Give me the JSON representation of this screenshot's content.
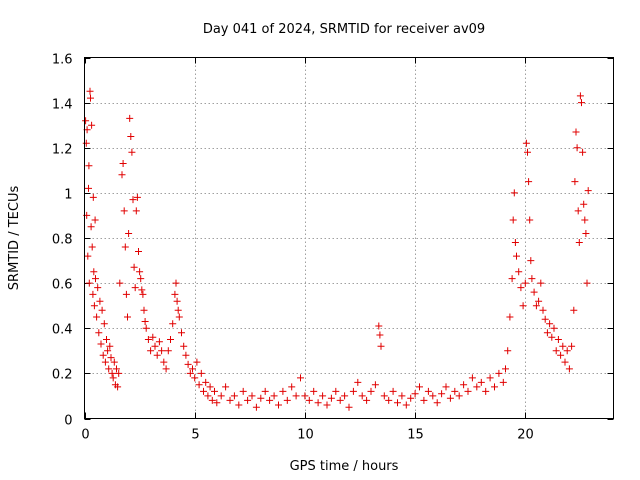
{
  "chart_data": {
    "type": "scatter",
    "title": "Day 041 of 2024, SRMTID for receiver av09",
    "xlabel": "GPS time / hours",
    "ylabel": "SRMTID / TECUs",
    "xlim": [
      0,
      24
    ],
    "ylim": [
      0,
      1.6
    ],
    "xticks": [
      0,
      5,
      10,
      15,
      20
    ],
    "xtick_labels": [
      "0",
      "5",
      "10",
      "15",
      "20"
    ],
    "yticks": [
      0,
      0.2,
      0.4,
      0.6,
      0.8,
      1.0,
      1.2,
      1.4,
      1.6
    ],
    "ytick_labels": [
      "0",
      "0.2",
      "0.4",
      "0.6",
      "0.8",
      "1",
      "1.2",
      "1.4",
      "1.6"
    ],
    "grid": true,
    "marker": "+",
    "series": [
      {
        "name": "SRMTID",
        "color": "#e00000",
        "points": [
          [
            0.05,
            1.32
          ],
          [
            0.08,
            1.22
          ],
          [
            0.1,
            0.9
          ],
          [
            0.12,
            1.28
          ],
          [
            0.15,
            0.72
          ],
          [
            0.18,
            1.02
          ],
          [
            0.2,
            1.12
          ],
          [
            0.22,
            0.6
          ],
          [
            0.25,
            1.45
          ],
          [
            0.27,
            1.42
          ],
          [
            0.3,
            0.85
          ],
          [
            0.32,
            1.3
          ],
          [
            0.35,
            0.76
          ],
          [
            0.38,
            0.55
          ],
          [
            0.4,
            0.98
          ],
          [
            0.42,
            0.65
          ],
          [
            0.45,
            0.5
          ],
          [
            0.48,
            0.88
          ],
          [
            0.5,
            0.62
          ],
          [
            0.55,
            0.45
          ],
          [
            0.6,
            0.58
          ],
          [
            0.65,
            0.38
          ],
          [
            0.7,
            0.52
          ],
          [
            0.75,
            0.33
          ],
          [
            0.8,
            0.48
          ],
          [
            0.85,
            0.28
          ],
          [
            0.9,
            0.42
          ],
          [
            0.95,
            0.25
          ],
          [
            1.0,
            0.35
          ],
          [
            1.05,
            0.3
          ],
          [
            1.1,
            0.22
          ],
          [
            1.15,
            0.32
          ],
          [
            1.2,
            0.27
          ],
          [
            1.25,
            0.2
          ],
          [
            1.3,
            0.18
          ],
          [
            1.35,
            0.25
          ],
          [
            1.4,
            0.15
          ],
          [
            1.45,
            0.22
          ],
          [
            1.5,
            0.14
          ],
          [
            1.55,
            0.2
          ],
          [
            1.6,
            0.6
          ],
          [
            1.7,
            1.08
          ],
          [
            1.75,
            1.13
          ],
          [
            1.8,
            0.92
          ],
          [
            1.85,
            0.76
          ],
          [
            1.9,
            0.55
          ],
          [
            1.95,
            0.45
          ],
          [
            2.0,
            0.82
          ],
          [
            2.05,
            1.33
          ],
          [
            2.1,
            1.25
          ],
          [
            2.15,
            1.18
          ],
          [
            2.2,
            0.97
          ],
          [
            2.25,
            0.67
          ],
          [
            2.3,
            0.58
          ],
          [
            2.35,
            0.92
          ],
          [
            2.4,
            0.98
          ],
          [
            2.45,
            0.74
          ],
          [
            2.5,
            0.65
          ],
          [
            2.55,
            0.62
          ],
          [
            2.6,
            0.57
          ],
          [
            2.65,
            0.55
          ],
          [
            2.7,
            0.48
          ],
          [
            2.75,
            0.43
          ],
          [
            2.8,
            0.4
          ],
          [
            2.9,
            0.35
          ],
          [
            3.0,
            0.3
          ],
          [
            3.1,
            0.36
          ],
          [
            3.2,
            0.32
          ],
          [
            3.3,
            0.28
          ],
          [
            3.4,
            0.34
          ],
          [
            3.5,
            0.3
          ],
          [
            3.6,
            0.25
          ],
          [
            3.7,
            0.22
          ],
          [
            3.8,
            0.3
          ],
          [
            3.9,
            0.35
          ],
          [
            4.0,
            0.42
          ],
          [
            4.1,
            0.55
          ],
          [
            4.15,
            0.6
          ],
          [
            4.2,
            0.52
          ],
          [
            4.25,
            0.48
          ],
          [
            4.3,
            0.45
          ],
          [
            4.4,
            0.38
          ],
          [
            4.5,
            0.32
          ],
          [
            4.6,
            0.28
          ],
          [
            4.7,
            0.24
          ],
          [
            4.8,
            0.2
          ],
          [
            4.9,
            0.22
          ],
          [
            5.0,
            0.18
          ],
          [
            5.1,
            0.25
          ],
          [
            5.2,
            0.15
          ],
          [
            5.3,
            0.2
          ],
          [
            5.4,
            0.12
          ],
          [
            5.5,
            0.16
          ],
          [
            5.6,
            0.1
          ],
          [
            5.7,
            0.14
          ],
          [
            5.8,
            0.08
          ],
          [
            5.9,
            0.12
          ],
          [
            6.0,
            0.07
          ],
          [
            6.2,
            0.1
          ],
          [
            6.4,
            0.14
          ],
          [
            6.6,
            0.08
          ],
          [
            6.8,
            0.1
          ],
          [
            7.0,
            0.06
          ],
          [
            7.2,
            0.12
          ],
          [
            7.4,
            0.08
          ],
          [
            7.6,
            0.1
          ],
          [
            7.8,
            0.05
          ],
          [
            8.0,
            0.09
          ],
          [
            8.2,
            0.12
          ],
          [
            8.4,
            0.08
          ],
          [
            8.6,
            0.1
          ],
          [
            8.8,
            0.06
          ],
          [
            9.0,
            0.12
          ],
          [
            9.2,
            0.08
          ],
          [
            9.4,
            0.14
          ],
          [
            9.6,
            0.1
          ],
          [
            9.8,
            0.18
          ],
          [
            10.0,
            0.1
          ],
          [
            10.2,
            0.08
          ],
          [
            10.4,
            0.12
          ],
          [
            10.6,
            0.07
          ],
          [
            10.8,
            0.1
          ],
          [
            11.0,
            0.06
          ],
          [
            11.2,
            0.09
          ],
          [
            11.4,
            0.12
          ],
          [
            11.6,
            0.08
          ],
          [
            11.8,
            0.1
          ],
          [
            12.0,
            0.05
          ],
          [
            12.2,
            0.12
          ],
          [
            12.4,
            0.16
          ],
          [
            12.6,
            0.1
          ],
          [
            12.8,
            0.08
          ],
          [
            13.0,
            0.12
          ],
          [
            13.2,
            0.15
          ],
          [
            13.35,
            0.41
          ],
          [
            13.4,
            0.37
          ],
          [
            13.45,
            0.32
          ],
          [
            13.6,
            0.1
          ],
          [
            13.8,
            0.08
          ],
          [
            14.0,
            0.12
          ],
          [
            14.2,
            0.07
          ],
          [
            14.4,
            0.1
          ],
          [
            14.6,
            0.06
          ],
          [
            14.8,
            0.09
          ],
          [
            15.0,
            0.11
          ],
          [
            15.2,
            0.14
          ],
          [
            15.4,
            0.08
          ],
          [
            15.6,
            0.12
          ],
          [
            15.8,
            0.1
          ],
          [
            16.0,
            0.07
          ],
          [
            16.2,
            0.11
          ],
          [
            16.4,
            0.14
          ],
          [
            16.6,
            0.09
          ],
          [
            16.8,
            0.12
          ],
          [
            17.0,
            0.1
          ],
          [
            17.2,
            0.15
          ],
          [
            17.4,
            0.12
          ],
          [
            17.6,
            0.18
          ],
          [
            17.8,
            0.14
          ],
          [
            18.0,
            0.16
          ],
          [
            18.2,
            0.12
          ],
          [
            18.4,
            0.18
          ],
          [
            18.6,
            0.14
          ],
          [
            18.8,
            0.2
          ],
          [
            19.0,
            0.16
          ],
          [
            19.1,
            0.22
          ],
          [
            19.2,
            0.3
          ],
          [
            19.3,
            0.45
          ],
          [
            19.4,
            0.62
          ],
          [
            19.45,
            0.88
          ],
          [
            19.5,
            1.0
          ],
          [
            19.55,
            0.78
          ],
          [
            19.6,
            0.72
          ],
          [
            19.7,
            0.65
          ],
          [
            19.8,
            0.58
          ],
          [
            19.9,
            0.5
          ],
          [
            20.0,
            0.6
          ],
          [
            20.05,
            1.22
          ],
          [
            20.1,
            1.18
          ],
          [
            20.15,
            1.05
          ],
          [
            20.2,
            0.88
          ],
          [
            20.25,
            0.7
          ],
          [
            20.3,
            0.62
          ],
          [
            20.4,
            0.56
          ],
          [
            20.5,
            0.5
          ],
          [
            20.6,
            0.52
          ],
          [
            20.7,
            0.6
          ],
          [
            20.8,
            0.48
          ],
          [
            20.9,
            0.44
          ],
          [
            21.0,
            0.38
          ],
          [
            21.1,
            0.42
          ],
          [
            21.2,
            0.36
          ],
          [
            21.3,
            0.4
          ],
          [
            21.4,
            0.3
          ],
          [
            21.5,
            0.35
          ],
          [
            21.6,
            0.28
          ],
          [
            21.7,
            0.32
          ],
          [
            21.8,
            0.25
          ],
          [
            21.9,
            0.3
          ],
          [
            22.0,
            0.22
          ],
          [
            22.1,
            0.32
          ],
          [
            22.2,
            0.48
          ],
          [
            22.25,
            1.05
          ],
          [
            22.3,
            1.27
          ],
          [
            22.35,
            1.2
          ],
          [
            22.4,
            0.92
          ],
          [
            22.45,
            0.78
          ],
          [
            22.5,
            1.43
          ],
          [
            22.55,
            1.4
          ],
          [
            22.6,
            1.18
          ],
          [
            22.65,
            0.95
          ],
          [
            22.7,
            0.88
          ],
          [
            22.75,
            0.82
          ],
          [
            22.8,
            0.6
          ],
          [
            22.85,
            1.01
          ]
        ]
      }
    ]
  }
}
